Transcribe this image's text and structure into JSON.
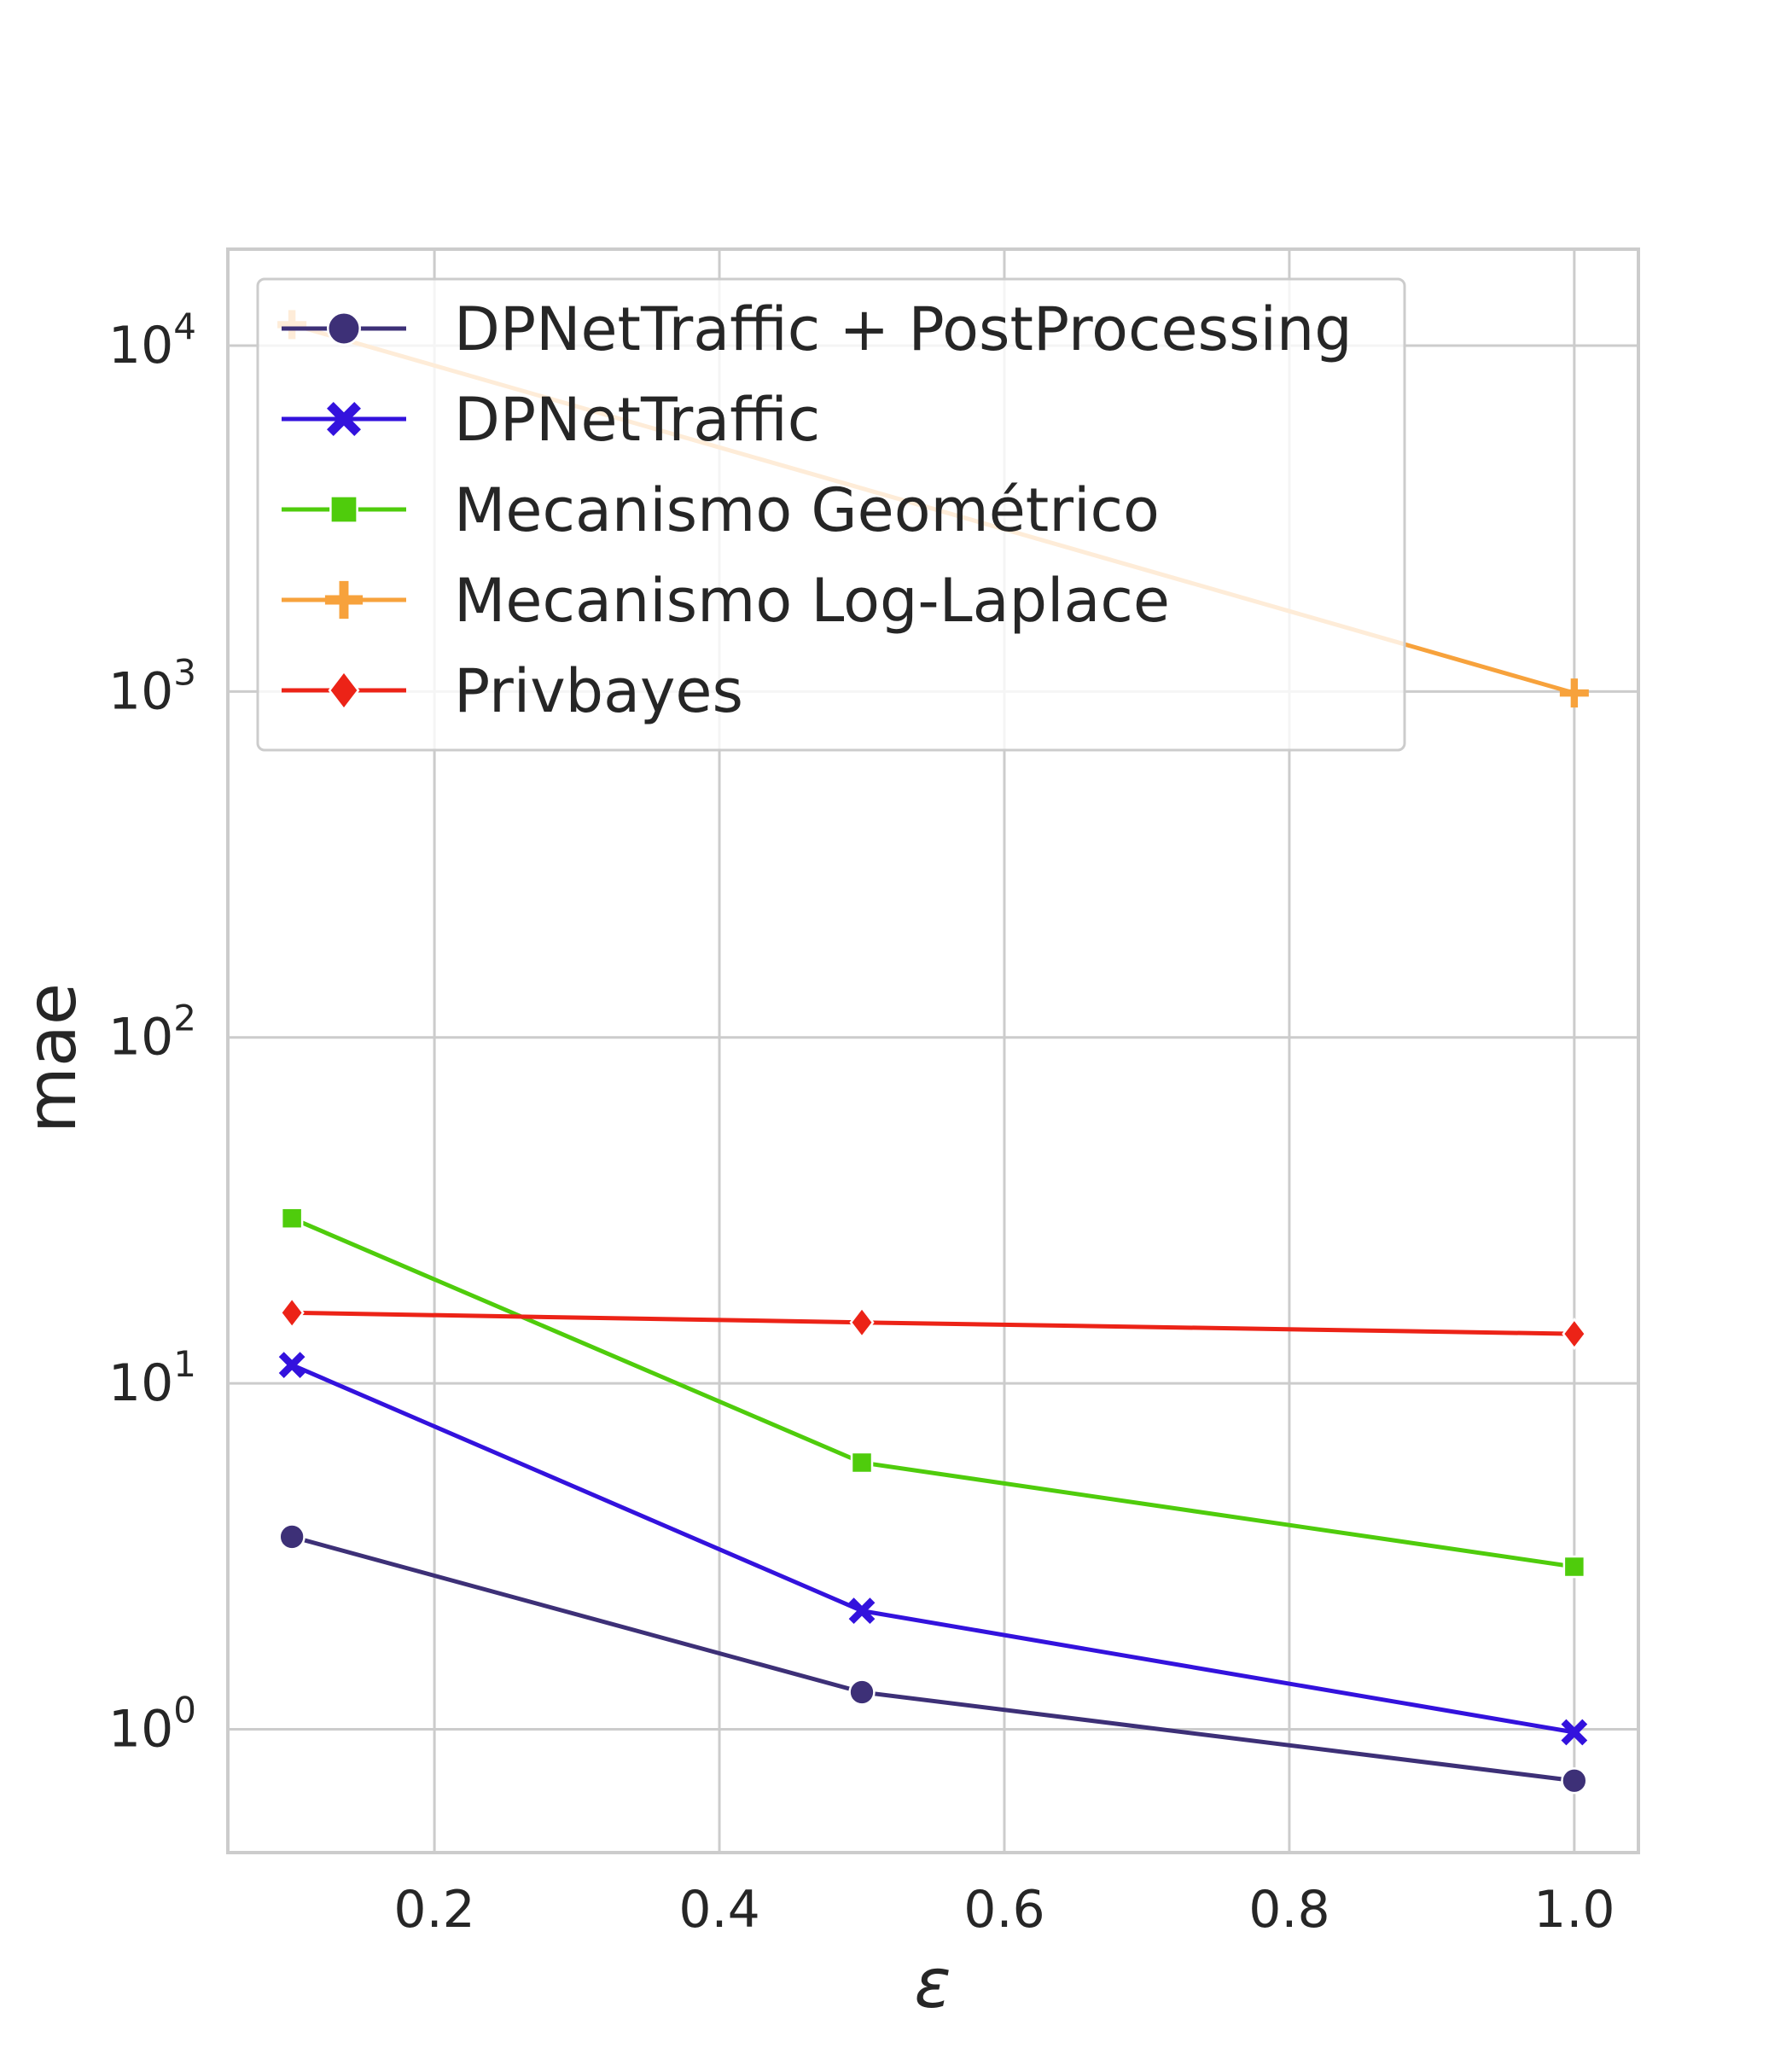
{
  "chart_data": {
    "type": "line",
    "xlabel": "ε",
    "ylabel": "mae",
    "y_scale": "log",
    "xlim": [
      0.055,
      1.045
    ],
    "ylim": [
      0.44,
      19000
    ],
    "x_ticks": [
      0.2,
      0.4,
      0.6,
      0.8,
      1.0
    ],
    "x_tick_labels": [
      "0.2",
      "0.4",
      "0.6",
      "0.8",
      "1.0"
    ],
    "y_ticks": [
      {
        "value": 1,
        "base": "10",
        "exp": "0"
      },
      {
        "value": 10,
        "base": "10",
        "exp": "1"
      },
      {
        "value": 100,
        "base": "10",
        "exp": "2"
      },
      {
        "value": 1000,
        "base": "10",
        "exp": "3"
      },
      {
        "value": 10000,
        "base": "10",
        "exp": "4"
      }
    ],
    "grid": true,
    "legend_position": "top-left",
    "x": [
      0.1,
      0.5,
      1.0
    ],
    "series": [
      {
        "name": "DPNetTraffic + PostProcessing",
        "color": "#3d3077",
        "marker": "circle",
        "values": [
          3.6,
          1.28,
          0.71
        ]
      },
      {
        "name": "DPNetTraffic",
        "color": "#3312dd",
        "marker": "x",
        "values": [
          11.3,
          2.2,
          0.98
        ]
      },
      {
        "name": "Mecanismo Geométrico",
        "color": "#4fcc0c",
        "marker": "square",
        "values": [
          30,
          5.9,
          2.95
        ]
      },
      {
        "name": "Mecanismo Log-Laplace",
        "color": "#f7a23c",
        "marker": "plus",
        "values": [
          11500,
          null,
          990
        ]
      },
      {
        "name": "Privbayes",
        "color": "#ec2317",
        "marker": "diamond",
        "values": [
          16.0,
          15.0,
          13.9
        ]
      }
    ]
  }
}
